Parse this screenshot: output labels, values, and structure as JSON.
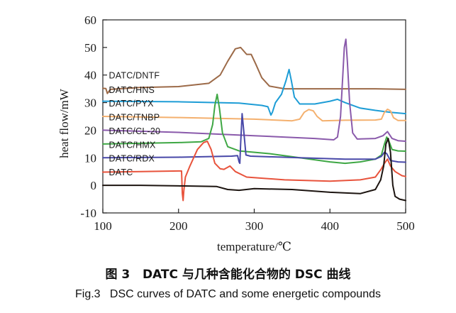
{
  "captions": {
    "cn": "图 3   DATC 与几种含能化合物的 DSC 曲线",
    "en": "Fig.3   DSC curves of DATC and some energetic compounds"
  },
  "chart_data": {
    "type": "line",
    "title": "",
    "xlabel": "temperature/℃",
    "ylabel": "heat flow/mW",
    "xlim": [
      100,
      500
    ],
    "ylim": [
      -10,
      60
    ],
    "xticks": [
      100,
      200,
      300,
      400,
      500
    ],
    "yticks": [
      -10,
      0,
      10,
      20,
      30,
      40,
      50,
      60
    ],
    "grid": false,
    "legend": "inline labels at left",
    "series": [
      {
        "name": "DATC/DNTF",
        "color": "#9c6a48",
        "points": [
          [
            100,
            35.2
          ],
          [
            104,
            35.1
          ],
          [
            106,
            33.3
          ],
          [
            110,
            34.8
          ],
          [
            150,
            35.5
          ],
          [
            200,
            35.8
          ],
          [
            240,
            37
          ],
          [
            255,
            40
          ],
          [
            265,
            45
          ],
          [
            275,
            49.5
          ],
          [
            282,
            50
          ],
          [
            290,
            47.5
          ],
          [
            296,
            47.5
          ],
          [
            302,
            44
          ],
          [
            310,
            39
          ],
          [
            320,
            36
          ],
          [
            340,
            35
          ],
          [
            380,
            35
          ],
          [
            420,
            35
          ],
          [
            460,
            35
          ],
          [
            500,
            34.8
          ]
        ]
      },
      {
        "name": "DATC/HNS",
        "color": "#1e9dd6",
        "points": [
          [
            100,
            30.5
          ],
          [
            200,
            30.3
          ],
          [
            280,
            29.8
          ],
          [
            310,
            29
          ],
          [
            318,
            28.5
          ],
          [
            320,
            27
          ],
          [
            322,
            25.5
          ],
          [
            324,
            26.5
          ],
          [
            328,
            30
          ],
          [
            336,
            33
          ],
          [
            342,
            38
          ],
          [
            346,
            42
          ],
          [
            349,
            38
          ],
          [
            353,
            32
          ],
          [
            360,
            29.5
          ],
          [
            380,
            29.5
          ],
          [
            400,
            30.5
          ],
          [
            410,
            31.2
          ],
          [
            420,
            30
          ],
          [
            440,
            28
          ],
          [
            460,
            27.2
          ],
          [
            480,
            26.5
          ],
          [
            500,
            26
          ]
        ]
      },
      {
        "name": "DATC/PYX",
        "color": "#f4b06e",
        "points": [
          [
            100,
            25
          ],
          [
            200,
            24.6
          ],
          [
            300,
            24
          ],
          [
            350,
            23.4
          ],
          [
            360,
            24
          ],
          [
            366,
            26.5
          ],
          [
            372,
            27.5
          ],
          [
            378,
            27
          ],
          [
            383,
            25
          ],
          [
            390,
            23.4
          ],
          [
            420,
            23.6
          ],
          [
            460,
            23.7
          ],
          [
            468,
            24
          ],
          [
            472,
            26.5
          ],
          [
            476,
            27.6
          ],
          [
            480,
            27
          ],
          [
            484,
            24.5
          ],
          [
            490,
            23.5
          ],
          [
            500,
            23.5
          ]
        ]
      },
      {
        "name": "DATC/TNBP",
        "color": "#8a5aab",
        "points": [
          [
            100,
            20
          ],
          [
            200,
            19.2
          ],
          [
            300,
            18
          ],
          [
            380,
            17
          ],
          [
            405,
            16.5
          ],
          [
            410,
            17.5
          ],
          [
            414,
            25
          ],
          [
            417,
            40
          ],
          [
            419,
            50
          ],
          [
            421,
            53
          ],
          [
            423,
            45
          ],
          [
            426,
            30
          ],
          [
            430,
            19
          ],
          [
            436,
            16.8
          ],
          [
            460,
            17
          ],
          [
            470,
            18
          ],
          [
            476,
            19.5
          ],
          [
            482,
            17
          ],
          [
            490,
            16.2
          ],
          [
            500,
            16
          ]
        ]
      },
      {
        "name": "DATC/CL-20",
        "color": "#3ea744",
        "points": [
          [
            100,
            15
          ],
          [
            200,
            15.5
          ],
          [
            230,
            15.8
          ],
          [
            240,
            17
          ],
          [
            245,
            22
          ],
          [
            248,
            29
          ],
          [
            251,
            33
          ],
          [
            254,
            28
          ],
          [
            258,
            19
          ],
          [
            265,
            14
          ],
          [
            280,
            12.5
          ],
          [
            320,
            11.5
          ],
          [
            360,
            10
          ],
          [
            400,
            8.5
          ],
          [
            420,
            8
          ],
          [
            440,
            8.5
          ],
          [
            460,
            9.5
          ],
          [
            468,
            11
          ],
          [
            472,
            15
          ],
          [
            475,
            17.5
          ],
          [
            478,
            16
          ],
          [
            482,
            13
          ],
          [
            490,
            12.5
          ],
          [
            500,
            12.4
          ]
        ]
      },
      {
        "name": "DATC/HMX",
        "color": "#4848a8",
        "points": [
          [
            100,
            10
          ],
          [
            200,
            10.2
          ],
          [
            270,
            10.6
          ],
          [
            278,
            10.8
          ],
          [
            280,
            8.5
          ],
          [
            281,
            8
          ],
          [
            282,
            15
          ],
          [
            284,
            26
          ],
          [
            286,
            20
          ],
          [
            289,
            11
          ],
          [
            295,
            10.6
          ],
          [
            360,
            10
          ],
          [
            420,
            9.5
          ],
          [
            460,
            9.5
          ],
          [
            468,
            10.5
          ],
          [
            472,
            12
          ],
          [
            475,
            11.5
          ],
          [
            480,
            9
          ],
          [
            490,
            8.5
          ],
          [
            500,
            8.4
          ]
        ]
      },
      {
        "name": "DATC/RDX",
        "color": "#e8533c",
        "points": [
          [
            100,
            4.8
          ],
          [
            150,
            5
          ],
          [
            200,
            5.2
          ],
          [
            204,
            5.2
          ],
          [
            205,
            -3
          ],
          [
            206,
            -5.5
          ],
          [
            207,
            -2
          ],
          [
            209,
            3
          ],
          [
            215,
            7
          ],
          [
            225,
            13
          ],
          [
            233,
            15.5
          ],
          [
            238,
            16
          ],
          [
            243,
            13
          ],
          [
            248,
            8
          ],
          [
            255,
            6
          ],
          [
            260,
            5.8
          ],
          [
            268,
            7
          ],
          [
            275,
            5
          ],
          [
            290,
            3
          ],
          [
            340,
            2
          ],
          [
            400,
            1.5
          ],
          [
            440,
            2
          ],
          [
            460,
            3
          ],
          [
            468,
            6
          ],
          [
            472,
            8
          ],
          [
            476,
            9.5
          ],
          [
            480,
            7
          ],
          [
            486,
            5
          ],
          [
            495,
            3.5
          ],
          [
            500,
            3.2
          ]
        ]
      },
      {
        "name": "DATC",
        "color": "#1c1410",
        "points": [
          [
            100,
            0
          ],
          [
            150,
            0
          ],
          [
            200,
            -0.2
          ],
          [
            250,
            -0.4
          ],
          [
            265,
            -1.5
          ],
          [
            280,
            -1.8
          ],
          [
            300,
            -1.2
          ],
          [
            350,
            -1.5
          ],
          [
            400,
            -2.5
          ],
          [
            440,
            -3
          ],
          [
            460,
            -1.5
          ],
          [
            467,
            2
          ],
          [
            471,
            7
          ],
          [
            474,
            15
          ],
          [
            477,
            17
          ],
          [
            480,
            12
          ],
          [
            483,
            0
          ],
          [
            486,
            -4
          ],
          [
            492,
            -5
          ],
          [
            500,
            -5.5
          ]
        ]
      }
    ],
    "annotations": [
      {
        "text": "DATC/DNTF",
        "x": 108,
        "y": 38.8
      },
      {
        "text": "DATC/HNS",
        "x": 108,
        "y": 33.5
      },
      {
        "text": "DATC/PYX",
        "x": 108,
        "y": 28.6
      },
      {
        "text": "DATC/TNBP",
        "x": 108,
        "y": 23.6
      },
      {
        "text": "DATC/CL-20",
        "x": 108,
        "y": 18.6
      },
      {
        "text": "DATC/HMX",
        "x": 108,
        "y": 13.6
      },
      {
        "text": "DATC/RDX",
        "x": 108,
        "y": 8.6
      },
      {
        "text": "DATC",
        "x": 108,
        "y": 3.6
      }
    ]
  }
}
